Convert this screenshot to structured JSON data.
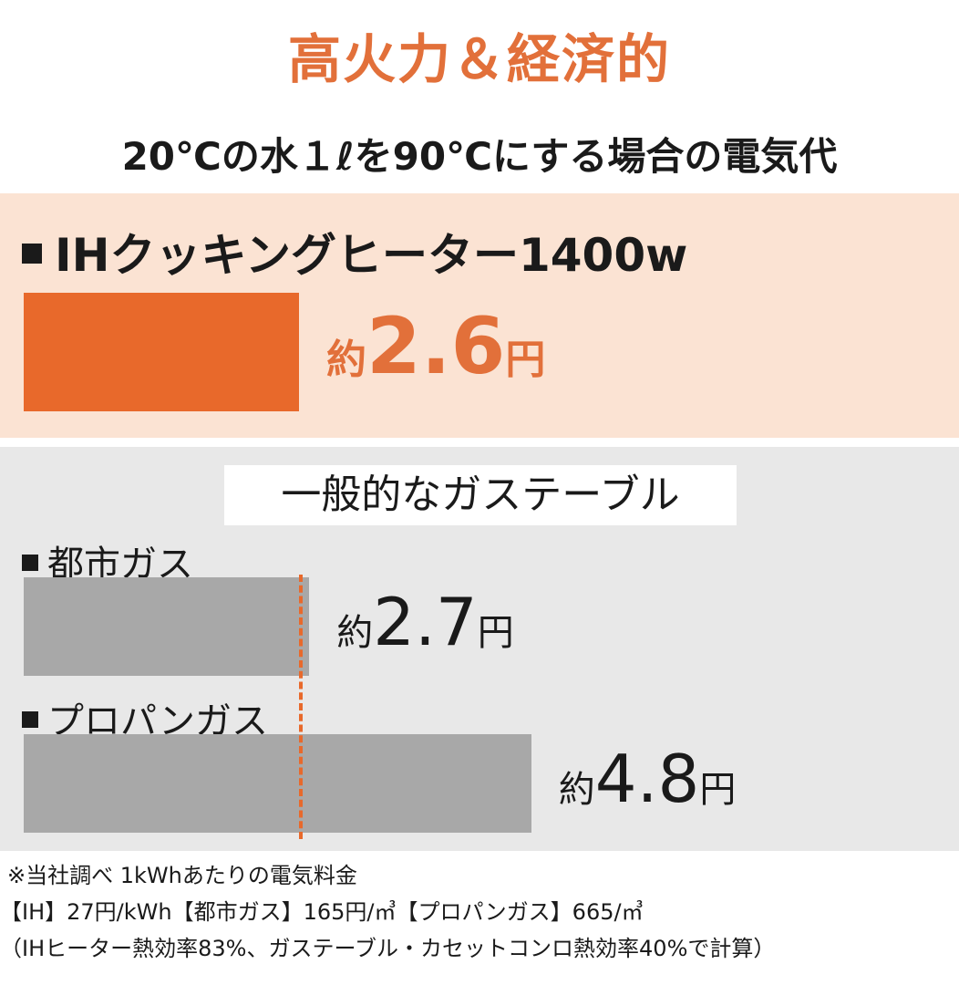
{
  "header": {
    "title": "高火力＆経済的",
    "subtitle": "20℃の水１ℓを90℃にする場合の電気代"
  },
  "ih": {
    "label": "IHクッキングヒーター1400w",
    "prefix": "約",
    "value": "2.6",
    "unit": "円"
  },
  "gas": {
    "title": "一般的なガステーブル",
    "city": {
      "label": "都市ガス",
      "prefix": "約",
      "value": "2.7",
      "unit": "円"
    },
    "propane": {
      "label": "プロパンガス",
      "prefix": "約",
      "value": "4.8",
      "unit": "円"
    }
  },
  "notes": [
    "※当社調べ 1kWhあたりの電気料金",
    "【IH】27円/kWh【都市ガス】165円/㎥【プロパンガス】665/㎥",
    "（IHヒーター熱効率83%、ガステーブル・カセットコンロ熱効率40%で計算）"
  ],
  "colors": {
    "accent": "#e8692b",
    "ih_panel_bg": "#fbe3d3",
    "gas_panel_bg": "#e8e8e8",
    "gas_bar": "#a8a8a8"
  },
  "chart_data": {
    "type": "bar",
    "orientation": "horizontal",
    "categories": [
      "IHクッキングヒーター1400w",
      "都市ガス",
      "プロパンガス"
    ],
    "values": [
      2.6,
      2.7,
      4.8
    ],
    "unit": "円",
    "reference_value": 2.6,
    "title": "",
    "xlabel": "",
    "ylabel": ""
  }
}
